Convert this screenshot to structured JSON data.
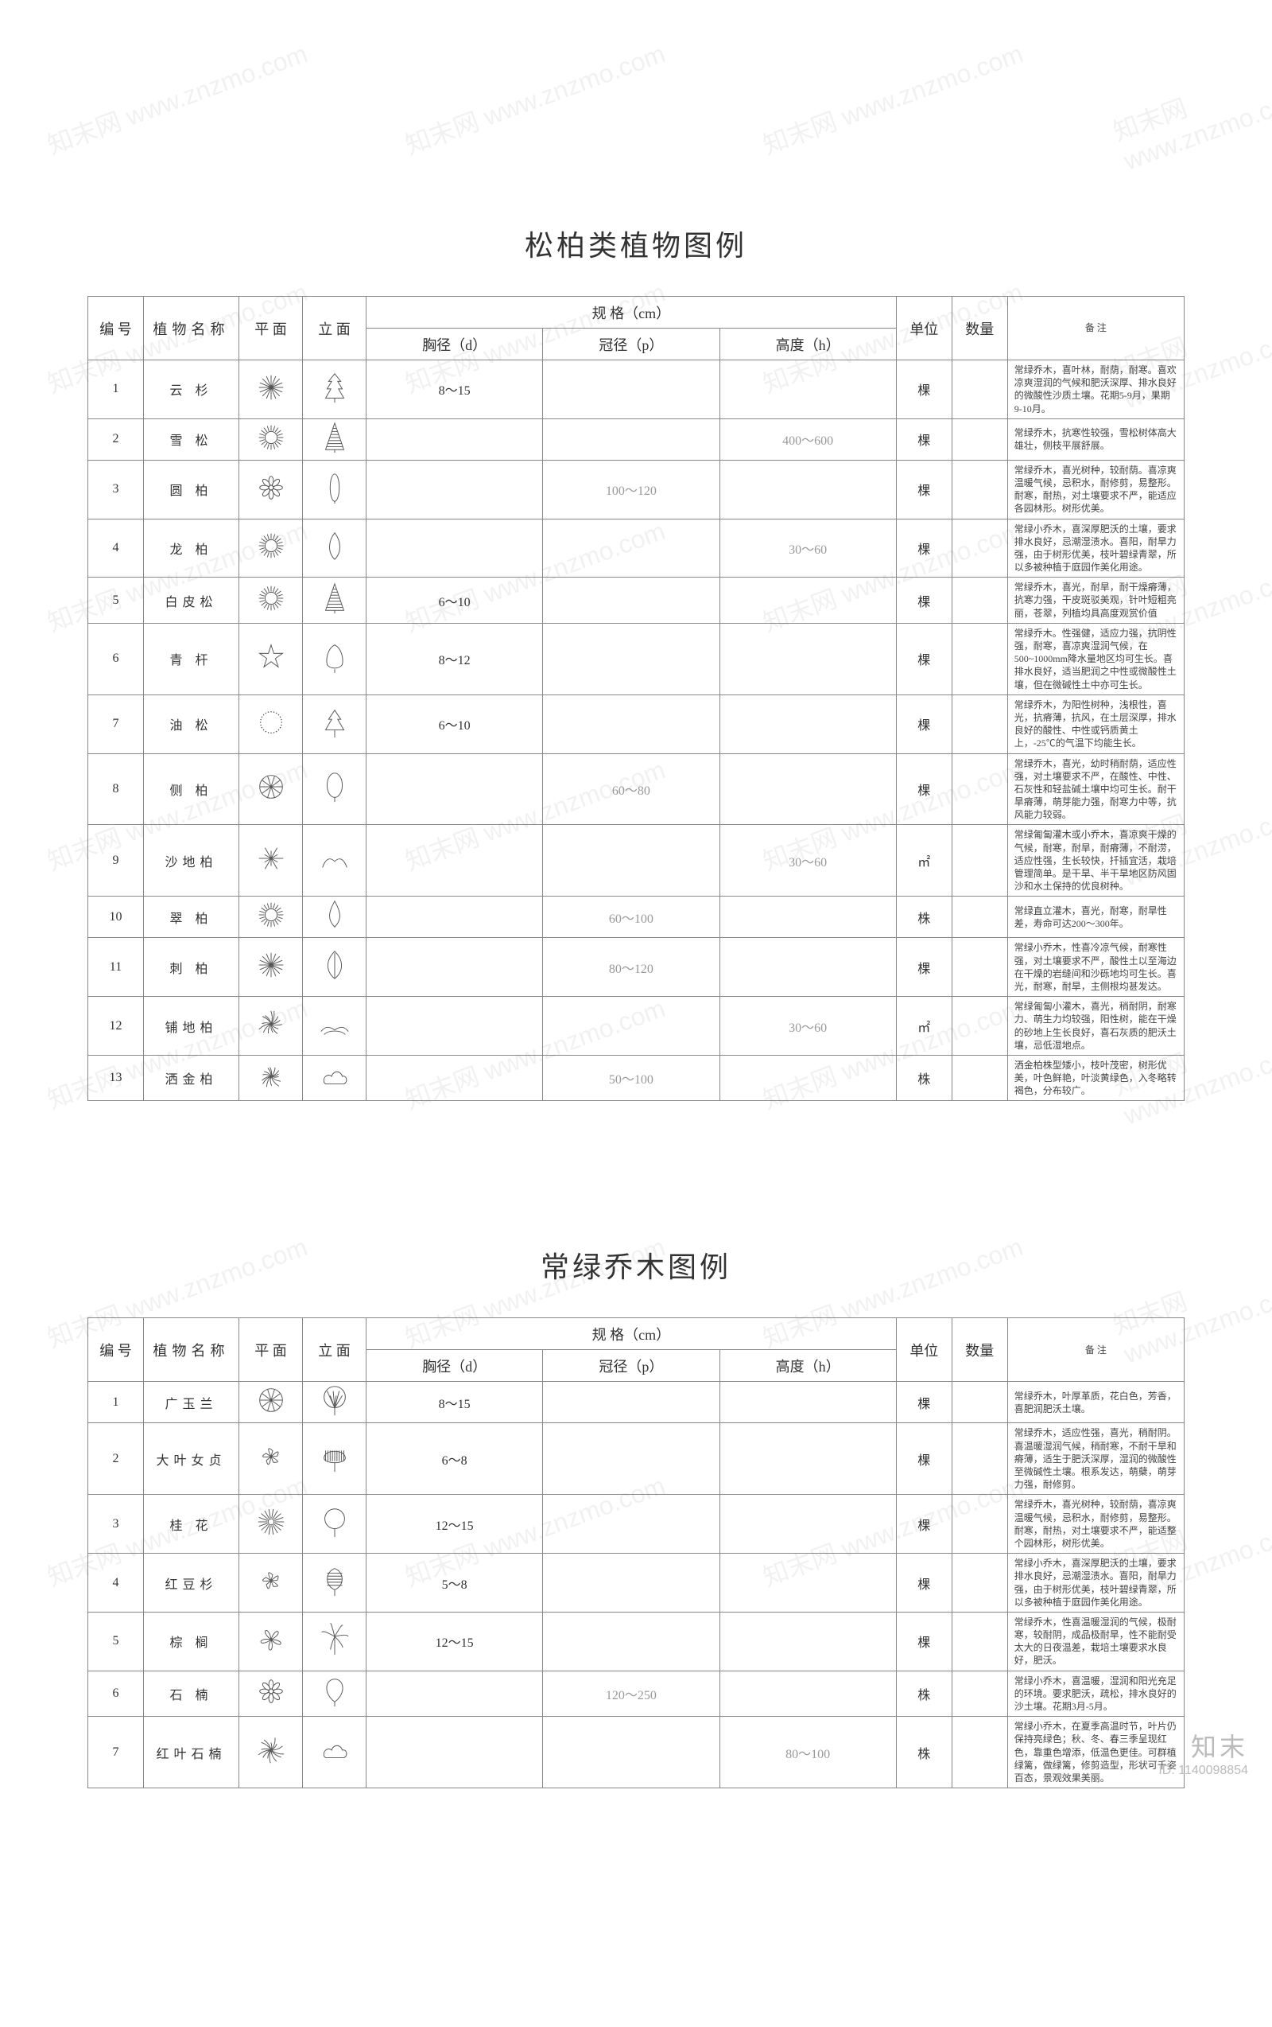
{
  "watermark_text": "知末网 www.znzmo.com",
  "footer": {
    "brand": "知末",
    "id_label": "ID: 1140098854"
  },
  "sections": [
    {
      "title": "松柏类植物图例",
      "header": {
        "no": "编 号",
        "name": "植物名称",
        "plan": "平 面",
        "elev": "立 面",
        "spec_group": "规 格（cm）",
        "d": "胸径（d）",
        "p": "冠径（p）",
        "h": "高度（h）",
        "unit": "单位",
        "qty": "数量",
        "note": "备 注"
      },
      "rows": [
        {
          "no": "1",
          "name": "云 杉",
          "plan_icon": "burst",
          "elev_icon": "conifer1",
          "d": "8～15",
          "p": "",
          "h": "",
          "unit": "棵",
          "qty": "",
          "note": "常绿乔木，喜叶林，耐荫，耐寒。喜欢凉爽湿润的气候和肥沃深厚、排水良好的微酸性沙质土壤。花期5-9月，果期9-10月。"
        },
        {
          "no": "2",
          "name": "雪 松",
          "plan_icon": "sun",
          "elev_icon": "conifer2",
          "d": "",
          "p": "",
          "h": "400～600",
          "h_grey": true,
          "unit": "棵",
          "qty": "",
          "note": "常绿乔木，抗寒性较强，雪松树体高大雄壮，侧枝平展舒展。"
        },
        {
          "no": "3",
          "name": "圆 柏",
          "plan_icon": "flower1",
          "elev_icon": "column",
          "d": "",
          "p": "100～120",
          "p_grey": true,
          "h": "",
          "unit": "棵",
          "qty": "",
          "note": "常绿乔木，喜光树种，较耐荫。喜凉爽温暖气候，忌积水，耐修剪，易整形。耐寒，耐热，对土壤要求不严，能适应各园林形。树形优美。"
        },
        {
          "no": "4",
          "name": "龙 柏",
          "plan_icon": "sun",
          "elev_icon": "flame",
          "d": "",
          "p": "",
          "h": "30～60",
          "h_grey": true,
          "unit": "棵",
          "qty": "",
          "note": "常绿小乔木，喜深厚肥沃的土壤，要求排水良好，忌潮湿渍水。喜阳，耐旱力强，由于树形优美，枝叶碧绿青翠，所以多被种植于庭园作美化用途。"
        },
        {
          "no": "5",
          "name": "白皮松",
          "plan_icon": "sun",
          "elev_icon": "conifer2",
          "d": "6～10",
          "p": "",
          "h": "",
          "unit": "棵",
          "qty": "",
          "note": "常绿乔木，喜光，耐旱，耐干燥瘠薄，抗寒力强，干皮斑驳美观，针叶短粗亮丽，苍翠，列植均具高度观赏价值"
        },
        {
          "no": "6",
          "name": "青 杆",
          "plan_icon": "star5",
          "elev_icon": "tree1",
          "d": "8～12",
          "p": "",
          "h": "",
          "unit": "棵",
          "qty": "",
          "note": "常绿乔木。性强健，适应力强，抗阴性强，耐寒，喜凉爽湿润气候，在500~1000mm降水量地区均可生长。喜排水良好，适当肥润之中性或微酸性土壤，但在微碱性土中亦可生长。"
        },
        {
          "no": "7",
          "name": "油 松",
          "plan_icon": "dotring",
          "elev_icon": "tree2",
          "d": "6～10",
          "p": "",
          "h": "",
          "unit": "棵",
          "qty": "",
          "note": "常绿乔木，为阳性树种，浅根性，喜光，抗瘠薄，抗风，在土层深厚，排水良好的酸性、中性或钙质黄土上，-25℃的气温下均能生长。"
        },
        {
          "no": "8",
          "name": "侧 柏",
          "plan_icon": "wheel",
          "elev_icon": "oval",
          "d": "",
          "p": "60～80",
          "p_grey": true,
          "h": "",
          "unit": "棵",
          "qty": "",
          "note": "常绿乔木，喜光，幼时稍耐荫，适应性强，对土壤要求不严，在酸性、中性、石灰性和轻盐碱土壤中均可生长。耐干旱瘠薄，萌芽能力强，耐寒力中等，抗风能力较弱。"
        },
        {
          "no": "9",
          "name": "沙地柏",
          "plan_icon": "starburst",
          "elev_icon": "shrub",
          "d": "",
          "p": "",
          "h": "30～60",
          "h_grey": true,
          "unit": "㎡",
          "qty": "",
          "note": "常绿匍匐灌木或小乔木，喜凉爽干燥的气候，耐寒，耐旱，耐瘠薄，不耐涝，适应性强，生长较快，扦插宜活，栽培管理简单。是干旱、半干旱地区防风固沙和水土保持的优良树种。"
        },
        {
          "no": "10",
          "name": "翠 柏",
          "plan_icon": "sun",
          "elev_icon": "drop",
          "d": "",
          "p": "60～100",
          "p_grey": true,
          "h": "",
          "unit": "株",
          "qty": "",
          "note": "常绿直立灌木，喜光，耐寒，耐旱性差，寿命可达200～300年。"
        },
        {
          "no": "11",
          "name": "刺 柏",
          "plan_icon": "burst",
          "elev_icon": "leaf",
          "d": "",
          "p": "80～120",
          "p_grey": true,
          "h": "",
          "unit": "棵",
          "qty": "",
          "note": "常绿小乔木，性喜冷凉气候，耐寒性强，对土壤要求不严，酸性土以至海边在干燥的岩缝间和沙砾地均可生长。喜光，耐寒，耐旱，主侧根均甚发达。"
        },
        {
          "no": "12",
          "name": "铺地柏",
          "plan_icon": "splash",
          "elev_icon": "spread",
          "d": "",
          "p": "",
          "h": "30～60",
          "h_grey": true,
          "unit": "㎡",
          "qty": "",
          "note": "常绿匍匐小灌木，喜光，稍耐阴，耐寒力、萌生力均较强，阳性树，能在干燥的砂地上生长良好，喜石灰质的肥沃土壤，忌低湿地点。"
        },
        {
          "no": "13",
          "name": "洒金柏",
          "plan_icon": "splash",
          "elev_icon": "cloud",
          "d": "",
          "p": "50～100",
          "p_grey": true,
          "h": "",
          "unit": "株",
          "qty": "",
          "note": "洒金柏株型矮小，枝叶茂密，树形优美，叶色鲜艳，叶淡黄绿色，入冬略转褐色，分布较广。"
        }
      ]
    },
    {
      "title": "常绿乔木图例",
      "header": {
        "no": "编 号",
        "name": "植物名称",
        "plan": "平 面",
        "elev": "立 面",
        "spec_group": "规 格（cm）",
        "d": "胸径（d）",
        "p": "冠径（p）",
        "h": "高度（h）",
        "unit": "单位",
        "qty": "数量",
        "note": "备 注"
      },
      "rows": [
        {
          "no": "1",
          "name": "广玉兰",
          "plan_icon": "wheel",
          "elev_icon": "broad1",
          "d": "8～15",
          "p": "",
          "h": "",
          "unit": "棵",
          "qty": "",
          "note": "常绿乔木，叶厚革质，花白色，芳香，喜肥润肥沃土壤。"
        },
        {
          "no": "2",
          "name": "大叶女贞",
          "plan_icon": "fan",
          "elev_icon": "broad2",
          "d": "6～8",
          "p": "",
          "h": "",
          "unit": "棵",
          "qty": "",
          "note": "常绿乔木，适应性强，喜光，稍耐阴。喜温暖湿润气候，稍耐寒，不耐干旱和瘠薄，适生于肥沃深厚，湿润的微酸性至微碱性土壤。根系发达，萌蘖，萌芽力强，耐修剪。"
        },
        {
          "no": "3",
          "name": "桂 花",
          "plan_icon": "radiate",
          "elev_icon": "round",
          "d": "12～15",
          "p": "",
          "h": "",
          "unit": "棵",
          "qty": "",
          "note": "常绿乔木，喜光树种，较耐荫，喜凉爽温暖气候，忌积水，耐修剪，易整形。耐寒，耐热，对土壤要求不严，能适整个园林形，树形优美。"
        },
        {
          "no": "4",
          "name": "红豆杉",
          "plan_icon": "fan",
          "elev_icon": "broad3",
          "d": "5～8",
          "p": "",
          "h": "",
          "unit": "棵",
          "qty": "",
          "note": "常绿小乔木，喜深厚肥沃的土壤，要求排水良好，忌潮湿渍水。喜阳，耐旱力强，由于树形优美，枝叶碧绿青翠，所以多被种植于庭园作美化用途。"
        },
        {
          "no": "5",
          "name": "棕 榈",
          "plan_icon": "pinwheel",
          "elev_icon": "palm",
          "d": "12～15",
          "p": "",
          "h": "",
          "unit": "棵",
          "qty": "",
          "note": "常绿乔木，性喜温暖湿润的气候，极耐寒，较耐阴，成品极耐旱，性不能耐受太大的日夜温差，栽培土壤要求水良好，肥沃。"
        },
        {
          "no": "6",
          "name": "石 楠",
          "plan_icon": "flower1",
          "elev_icon": "bulb",
          "d": "",
          "p": "120～250",
          "p_grey": true,
          "h": "",
          "unit": "株",
          "qty": "",
          "note": "常绿小乔木，喜温暖，湿润和阳光充足的环境。要求肥沃，疏松，排水良好的沙土壤。花期3月-5月。"
        },
        {
          "no": "7",
          "name": "红叶石楠",
          "plan_icon": "splash",
          "elev_icon": "cloud",
          "d": "",
          "p": "",
          "h": "80～100",
          "h_grey": true,
          "unit": "株",
          "qty": "",
          "note": "常绿小乔木，在夏季高温时节，叶片仍保持亮绿色；秋、冬、春三季呈现红色，靠重色增添，低温色更佳。可群植绿篱，做绿篱，修剪造型，形状可千姿百态，景观效果美丽。"
        }
      ]
    }
  ]
}
